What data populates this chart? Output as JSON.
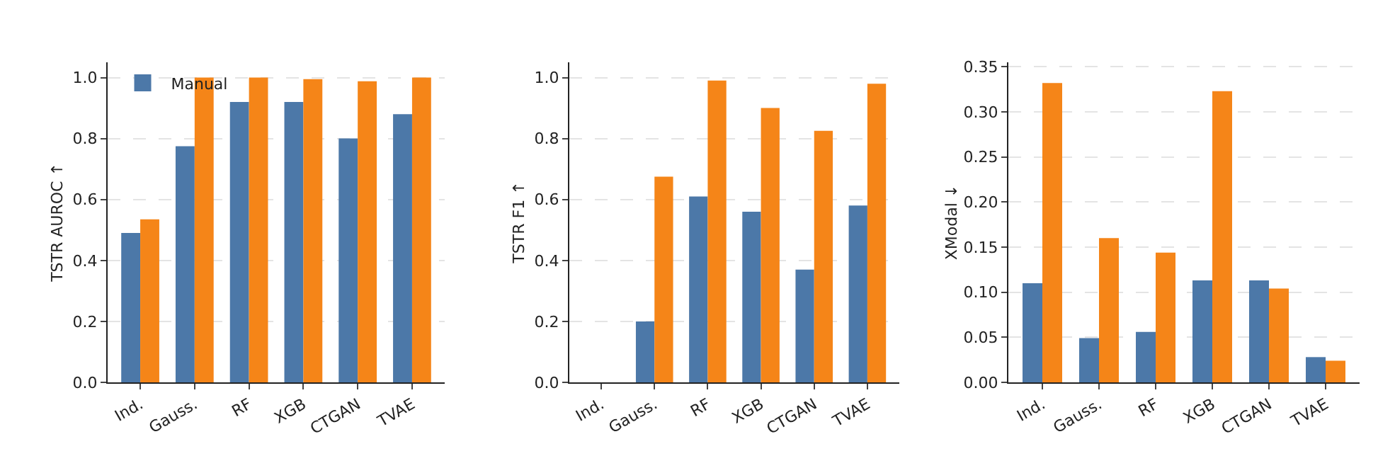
{
  "chart_data": [
    {
      "type": "bar",
      "ylabel": "TSTR AUROC ↑",
      "categories": [
        "Ind.",
        "Gauss.",
        "RF",
        "XGB",
        "CTGAN",
        "TVAE"
      ],
      "series": [
        {
          "name": "Manual",
          "color": "#4c78a8",
          "values": [
            0.49,
            0.775,
            0.92,
            0.92,
            0.8,
            0.88
          ]
        },
        {
          "color": "#f58518",
          "values": [
            0.535,
            1.0,
            1.0,
            0.995,
            0.988,
            1.0
          ]
        }
      ],
      "ylim": [
        0,
        1.05
      ],
      "yticks": [
        {
          "value": 0,
          "label": "0.0"
        },
        {
          "value": 0.2,
          "label": "0.2"
        },
        {
          "value": 0.4,
          "label": "0.4"
        },
        {
          "value": 0.6,
          "label": "0.6"
        },
        {
          "value": 0.8,
          "label": "0.8"
        },
        {
          "value": 1,
          "label": "1.0"
        }
      ],
      "grid": "y",
      "legend": "top left"
    },
    {
      "type": "bar",
      "ylabel": "TSTR F1 ↑",
      "categories": [
        "Ind.",
        "Gauss.",
        "RF",
        "XGB",
        "CTGAN",
        "TVAE"
      ],
      "series": [
        {
          "color": "#4c78a8",
          "values": [
            0,
            0.2,
            0.61,
            0.56,
            0.37,
            0.58
          ]
        },
        {
          "color": "#f58518",
          "values": [
            0,
            0.675,
            0.99,
            0.9,
            0.825,
            0.98
          ]
        }
      ],
      "ylim": [
        0,
        1.05
      ],
      "yticks": [
        {
          "value": 0,
          "label": "0.0"
        },
        {
          "value": 0.2,
          "label": "0.2"
        },
        {
          "value": 0.4,
          "label": "0.4"
        },
        {
          "value": 0.6,
          "label": "0.6"
        },
        {
          "value": 0.8,
          "label": "0.8"
        },
        {
          "value": 1,
          "label": "1.0"
        }
      ],
      "grid": "y"
    },
    {
      "type": "bar",
      "ylabel": "XModal ↓",
      "categories": [
        "Ind.",
        "Gauss.",
        "RF",
        "XGB",
        "CTGAN",
        "TVAE"
      ],
      "series": [
        {
          "color": "#4c78a8",
          "values": [
            0.11,
            0.049,
            0.056,
            0.113,
            0.113,
            0.028
          ]
        },
        {
          "color": "#f58518",
          "values": [
            0.332,
            0.16,
            0.144,
            0.323,
            0.104,
            0.024
          ]
        }
      ],
      "ylim": [
        0,
        0.355
      ],
      "yticks": [
        {
          "value": 0,
          "label": "0.00"
        },
        {
          "value": 0.05,
          "label": "0.05"
        },
        {
          "value": 0.1,
          "label": "0.10"
        },
        {
          "value": 0.15,
          "label": "0.15"
        },
        {
          "value": 0.2,
          "label": "0.20"
        },
        {
          "value": 0.25,
          "label": "0.25"
        },
        {
          "value": 0.3,
          "label": "0.30"
        },
        {
          "value": 0.35,
          "label": "0.35"
        }
      ],
      "grid": "y"
    }
  ]
}
